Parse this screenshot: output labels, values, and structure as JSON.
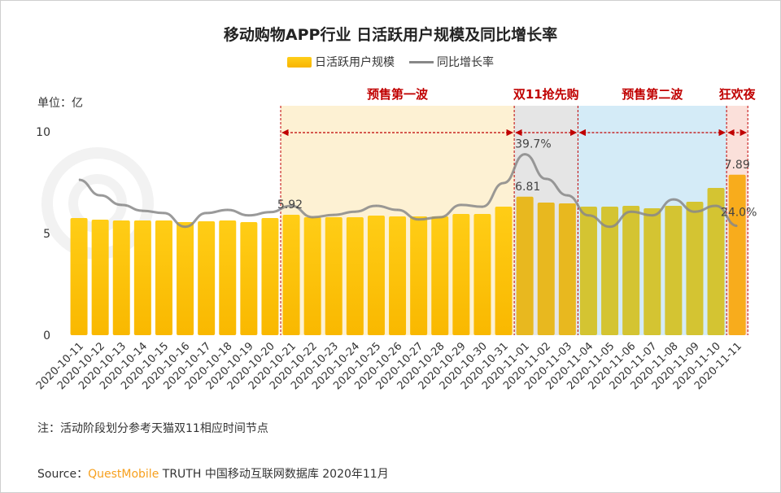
{
  "chart_data": {
    "type": "bar+line",
    "title": "移动购物APP行业 日活跃用户规模及同比增长率",
    "unit_label": "单位：亿",
    "categories": [
      "2020-10-11",
      "2020-10-12",
      "2020-10-13",
      "2020-10-14",
      "2020-10-15",
      "2020-10-16",
      "2020-10-17",
      "2020-10-18",
      "2020-10-19",
      "2020-10-20",
      "2020-10-21",
      "2020-10-22",
      "2020-10-23",
      "2020-10-24",
      "2020-10-25",
      "2020-10-26",
      "2020-10-27",
      "2020-10-28",
      "2020-10-29",
      "2020-10-30",
      "2020-10-31",
      "2020-11-01",
      "2020-11-02",
      "2020-11-03",
      "2020-11-04",
      "2020-11-05",
      "2020-11-06",
      "2020-11-07",
      "2020-11-08",
      "2020-11-09",
      "2020-11-10",
      "2020-11-11"
    ],
    "series": [
      {
        "name": "日活跃用户规模",
        "type": "bar",
        "color": "#fcc30a",
        "values": [
          5.76,
          5.68,
          5.64,
          5.64,
          5.64,
          5.56,
          5.6,
          5.64,
          5.56,
          5.76,
          5.92,
          5.8,
          5.8,
          5.8,
          5.88,
          5.84,
          5.84,
          5.84,
          5.96,
          5.96,
          6.32,
          6.81,
          6.52,
          6.48,
          6.32,
          6.32,
          6.36,
          6.24,
          6.36,
          6.56,
          7.24,
          7.89
        ]
      },
      {
        "name": "同比增长率",
        "type": "line",
        "color": "#888888",
        "unit": "%",
        "values": [
          34.1,
          30.7,
          28.6,
          27.3,
          26.8,
          23.8,
          26.8,
          27.5,
          26.3,
          27.0,
          28.4,
          25.9,
          26.4,
          27.1,
          28.4,
          27.5,
          25.4,
          25.9,
          28.6,
          28.2,
          33.4,
          39.7,
          34.3,
          30.7,
          26.3,
          23.8,
          27.1,
          26.3,
          29.8,
          27.1,
          28.4,
          24.0
        ]
      }
    ],
    "data_labels": [
      {
        "series": 0,
        "index": 10,
        "text": "5.92"
      },
      {
        "series": 0,
        "index": 21,
        "text": "6.81"
      },
      {
        "series": 0,
        "index": 31,
        "text": "7.89"
      },
      {
        "series": 1,
        "index": 21,
        "text": "39.7%"
      },
      {
        "series": 1,
        "index": 31,
        "text": "24.0%"
      }
    ],
    "y_ticks": [
      "0",
      "5",
      "10"
    ],
    "ylim": [
      0,
      10
    ],
    "grid": false,
    "legend_position": "top",
    "phases": [
      {
        "label": "预售第一波",
        "start": 10,
        "end": 20,
        "color": "#fdf1d3"
      },
      {
        "label": "双11抢先购",
        "start": 21,
        "end": 23,
        "color": "#e5e5e5"
      },
      {
        "label": "预售第二波",
        "start": 24,
        "end": 30,
        "color": "#d4ebf7"
      },
      {
        "label": "狂欢夜",
        "start": 31,
        "end": 31,
        "color": "#fbe0da"
      }
    ],
    "phase_label_color": "#c00000"
  },
  "note": "注：活动阶段划分参考天猫双11相应时间节点",
  "source": {
    "prefix": "Source：",
    "brand": "QuestMobile",
    "rest": " TRUTH 中国移动互联网数据库 2020年11月"
  }
}
